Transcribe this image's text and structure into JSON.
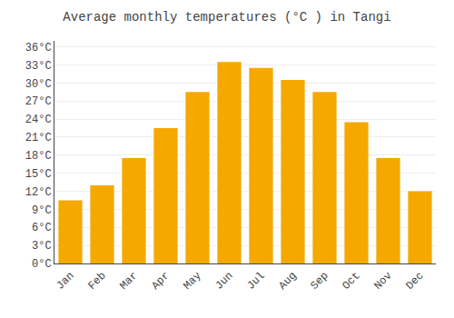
{
  "chart_data": {
    "type": "bar",
    "title": "Average monthly temperatures (°C ) in Tangi",
    "categories": [
      "Jan",
      "Feb",
      "Mar",
      "Apr",
      "May",
      "Jun",
      "Jul",
      "Aug",
      "Sep",
      "Oct",
      "Nov",
      "Dec"
    ],
    "values": [
      10.5,
      13.0,
      17.5,
      22.5,
      28.5,
      33.5,
      32.5,
      30.5,
      28.5,
      23.5,
      17.5,
      12.0
    ],
    "color": "#F5A800",
    "ylim": [
      0,
      37
    ],
    "yticks": [
      {
        "value": 0,
        "label": "0°C"
      },
      {
        "value": 3,
        "label": "3°C"
      },
      {
        "value": 6,
        "label": "6°C"
      },
      {
        "value": 9,
        "label": "9°C"
      },
      {
        "value": 12,
        "label": "12°C"
      },
      {
        "value": 15,
        "label": "15°C"
      },
      {
        "value": 18,
        "label": "18°C"
      },
      {
        "value": 21,
        "label": "21°C"
      },
      {
        "value": 24,
        "label": "24°C"
      },
      {
        "value": 27,
        "label": "27°C"
      },
      {
        "value": 30,
        "label": "30°C"
      },
      {
        "value": 33,
        "label": "33°C"
      },
      {
        "value": 36,
        "label": "36°C"
      }
    ],
    "grid": true
  }
}
